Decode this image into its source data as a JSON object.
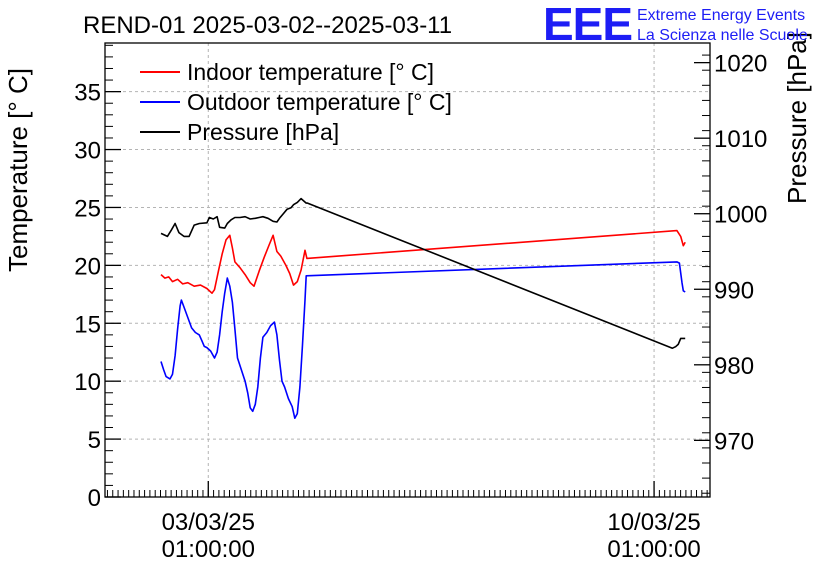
{
  "chart_data": {
    "type": "line",
    "title": "REND-01 2025-03-02--2025-03-11",
    "ylabel_left": "Temperature [° C]",
    "ylabel_right": "Pressure [hPa]",
    "ylim_left": [
      0,
      39.2
    ],
    "ylim_right": [
      962.5,
      1022.6
    ],
    "xlim": [
      1.42,
      10.92
    ],
    "left_ticks": [
      "0",
      "5",
      "10",
      "15",
      "20",
      "25",
      "30",
      "35"
    ],
    "right_ticks": [
      "970",
      "980",
      "990",
      "1000",
      "1010",
      "1020"
    ],
    "x_ticks": [
      {
        "x": 3.0417,
        "date": "03/03/25",
        "time": "01:00:00"
      },
      {
        "x": 10.0417,
        "date": "10/03/25",
        "time": "01:00:00"
      }
    ],
    "grid": true,
    "legend_position": "top-left",
    "series": [
      {
        "name": "Indoor temperature [° C]",
        "axis": "left",
        "color": "#ff0000",
        "points": [
          [
            2.3,
            19.2
          ],
          [
            2.36,
            18.9
          ],
          [
            2.42,
            19.0
          ],
          [
            2.48,
            18.6
          ],
          [
            2.56,
            18.8
          ],
          [
            2.64,
            18.4
          ],
          [
            2.72,
            18.5
          ],
          [
            2.82,
            18.2
          ],
          [
            2.92,
            18.3
          ],
          [
            3.02,
            18.0
          ],
          [
            3.1,
            17.6
          ],
          [
            3.14,
            17.9
          ],
          [
            3.2,
            19.5
          ],
          [
            3.26,
            21.0
          ],
          [
            3.32,
            22.2
          ],
          [
            3.38,
            22.6
          ],
          [
            3.42,
            21.5
          ],
          [
            3.46,
            20.3
          ],
          [
            3.54,
            19.8
          ],
          [
            3.62,
            19.2
          ],
          [
            3.7,
            18.5
          ],
          [
            3.76,
            18.2
          ],
          [
            3.84,
            19.5
          ],
          [
            3.92,
            20.7
          ],
          [
            4.0,
            21.8
          ],
          [
            4.06,
            22.6
          ],
          [
            4.12,
            21.2
          ],
          [
            4.18,
            20.8
          ],
          [
            4.26,
            20.0
          ],
          [
            4.32,
            19.3
          ],
          [
            4.38,
            18.3
          ],
          [
            4.44,
            18.6
          ],
          [
            4.5,
            19.6
          ],
          [
            4.56,
            21.3
          ],
          [
            4.59,
            20.6
          ],
          [
            10.4,
            23.0
          ],
          [
            10.46,
            22.5
          ],
          [
            10.5,
            21.7
          ],
          [
            10.53,
            22.0
          ]
        ]
      },
      {
        "name": "Outdoor temperature [° C]",
        "axis": "left",
        "color": "#0000ff",
        "points": [
          [
            2.3,
            11.7
          ],
          [
            2.34,
            11.0
          ],
          [
            2.38,
            10.4
          ],
          [
            2.44,
            10.2
          ],
          [
            2.48,
            10.6
          ],
          [
            2.52,
            12.2
          ],
          [
            2.56,
            14.5
          ],
          [
            2.6,
            16.5
          ],
          [
            2.62,
            17.0
          ],
          [
            2.66,
            16.4
          ],
          [
            2.72,
            15.5
          ],
          [
            2.78,
            14.6
          ],
          [
            2.84,
            14.2
          ],
          [
            2.9,
            14.0
          ],
          [
            2.94,
            13.5
          ],
          [
            2.98,
            13.0
          ],
          [
            3.02,
            12.9
          ],
          [
            3.08,
            12.6
          ],
          [
            3.14,
            12.0
          ],
          [
            3.18,
            12.5
          ],
          [
            3.22,
            14.0
          ],
          [
            3.26,
            16.0
          ],
          [
            3.3,
            17.6
          ],
          [
            3.34,
            18.9
          ],
          [
            3.38,
            18.2
          ],
          [
            3.42,
            16.8
          ],
          [
            3.46,
            14.5
          ],
          [
            3.5,
            12.0
          ],
          [
            3.56,
            11.0
          ],
          [
            3.62,
            10.0
          ],
          [
            3.66,
            9.0
          ],
          [
            3.7,
            7.7
          ],
          [
            3.74,
            7.4
          ],
          [
            3.78,
            8.0
          ],
          [
            3.82,
            9.5
          ],
          [
            3.86,
            12.0
          ],
          [
            3.9,
            13.8
          ],
          [
            3.96,
            14.2
          ],
          [
            4.02,
            14.8
          ],
          [
            4.08,
            15.1
          ],
          [
            4.12,
            14.0
          ],
          [
            4.16,
            11.8
          ],
          [
            4.2,
            10.0
          ],
          [
            4.24,
            9.5
          ],
          [
            4.3,
            8.5
          ],
          [
            4.36,
            7.8
          ],
          [
            4.4,
            6.8
          ],
          [
            4.44,
            7.2
          ],
          [
            4.48,
            9.5
          ],
          [
            4.52,
            13.0
          ],
          [
            4.56,
            17.0
          ],
          [
            4.58,
            19.1
          ],
          [
            10.4,
            20.3
          ],
          [
            10.44,
            20.2
          ],
          [
            10.48,
            18.5
          ],
          [
            10.5,
            17.8
          ],
          [
            10.53,
            17.7
          ]
        ]
      },
      {
        "name": "Pressure [hPa]",
        "axis": "right",
        "color": "#000000",
        "points": [
          [
            2.3,
            997.4
          ],
          [
            2.4,
            997.0
          ],
          [
            2.46,
            997.8
          ],
          [
            2.52,
            998.7
          ],
          [
            2.58,
            997.5
          ],
          [
            2.66,
            997.0
          ],
          [
            2.74,
            997.0
          ],
          [
            2.82,
            998.5
          ],
          [
            2.9,
            998.7
          ],
          [
            3.02,
            998.8
          ],
          [
            3.06,
            999.5
          ],
          [
            3.12,
            999.3
          ],
          [
            3.18,
            999.6
          ],
          [
            3.22,
            998.2
          ],
          [
            3.3,
            998.1
          ],
          [
            3.34,
            998.7
          ],
          [
            3.4,
            999.2
          ],
          [
            3.46,
            999.5
          ],
          [
            3.54,
            999.5
          ],
          [
            3.62,
            999.6
          ],
          [
            3.7,
            999.3
          ],
          [
            3.78,
            999.4
          ],
          [
            3.84,
            999.5
          ],
          [
            3.9,
            999.6
          ],
          [
            3.98,
            999.4
          ],
          [
            4.06,
            999.0
          ],
          [
            4.12,
            998.9
          ],
          [
            4.16,
            999.4
          ],
          [
            4.22,
            1000.0
          ],
          [
            4.28,
            1000.6
          ],
          [
            4.34,
            1000.8
          ],
          [
            4.38,
            1001.2
          ],
          [
            4.44,
            1001.5
          ],
          [
            4.5,
            1002.0
          ],
          [
            4.58,
            1001.4
          ],
          [
            4.6,
            1001.4
          ],
          [
            10.33,
            982.2
          ],
          [
            10.38,
            982.4
          ],
          [
            10.42,
            982.7
          ],
          [
            10.46,
            983.5
          ],
          [
            10.53,
            983.5
          ]
        ]
      }
    ]
  }
}
